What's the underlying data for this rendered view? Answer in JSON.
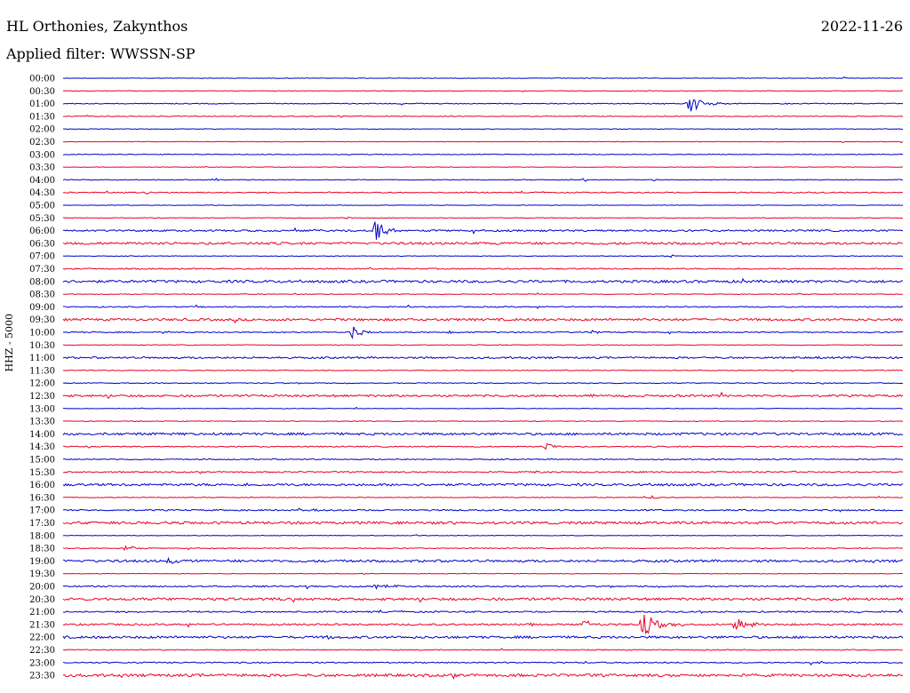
{
  "header": {
    "station": "HL Orthonies, Zakynthos",
    "filter": "Applied filter: WWSSN-SP",
    "date": "2022-11-26",
    "channel": "HHZ - 5000"
  },
  "colors": {
    "odd_trace": "#0000cc",
    "even_trace": "#e8002a"
  },
  "chart_data": {
    "type": "line",
    "title": "HL Orthonies, Zakynthos",
    "subtitle": "Applied filter: WWSSN-SP",
    "date": "2022-11-26",
    "ylabel": "HHZ - 5000",
    "grid": false,
    "legend": "none",
    "rows": [
      {
        "label": "00:00",
        "color": "blue",
        "noise": 0.3,
        "events": [
          {
            "t": 0.93,
            "amp": 2,
            "dur": 0.01
          }
        ]
      },
      {
        "label": "00:30",
        "color": "red",
        "noise": 0.3,
        "events": []
      },
      {
        "label": "01:00",
        "color": "blue",
        "noise": 0.5,
        "events": [
          {
            "t": 0.745,
            "amp": 10,
            "dur": 0.05
          },
          {
            "t": 0.86,
            "amp": 1.5,
            "dur": 0.02
          }
        ]
      },
      {
        "label": "01:30",
        "color": "red",
        "noise": 0.4,
        "events": [
          {
            "t": 0.33,
            "amp": 3,
            "dur": 0.02
          }
        ]
      },
      {
        "label": "02:00",
        "color": "blue",
        "noise": 0.3,
        "events": []
      },
      {
        "label": "02:30",
        "color": "red",
        "noise": 0.3,
        "events": []
      },
      {
        "label": "03:00",
        "color": "blue",
        "noise": 0.4,
        "events": []
      },
      {
        "label": "03:30",
        "color": "red",
        "noise": 0.3,
        "events": []
      },
      {
        "label": "04:00",
        "color": "blue",
        "noise": 0.4,
        "events": [
          {
            "t": 0.18,
            "amp": 2,
            "dur": 0.015
          },
          {
            "t": 0.62,
            "amp": 2,
            "dur": 0.015
          },
          {
            "t": 0.705,
            "amp": 2,
            "dur": 0.015
          }
        ]
      },
      {
        "label": "04:30",
        "color": "red",
        "noise": 0.6,
        "events": [
          {
            "t": 0.1,
            "amp": 1.5,
            "dur": 0.02
          }
        ]
      },
      {
        "label": "05:00",
        "color": "blue",
        "noise": 0.3,
        "events": []
      },
      {
        "label": "05:30",
        "color": "red",
        "noise": 0.4,
        "events": [
          {
            "t": 0.34,
            "amp": 2,
            "dur": 0.01
          },
          {
            "t": 0.61,
            "amp": 1.5,
            "dur": 0.02
          }
        ]
      },
      {
        "label": "06:00",
        "color": "blue",
        "noise": 1.0,
        "events": [
          {
            "t": 0.37,
            "amp": 11,
            "dur": 0.06
          }
        ]
      },
      {
        "label": "06:30",
        "color": "red",
        "noise": 1.3,
        "events": []
      },
      {
        "label": "07:00",
        "color": "blue",
        "noise": 0.3,
        "events": [
          {
            "t": 0.725,
            "amp": 2,
            "dur": 0.01
          }
        ]
      },
      {
        "label": "07:30",
        "color": "red",
        "noise": 0.7,
        "events": []
      },
      {
        "label": "08:00",
        "color": "blue",
        "noise": 1.4,
        "events": []
      },
      {
        "label": "08:30",
        "color": "red",
        "noise": 0.4,
        "events": []
      },
      {
        "label": "09:00",
        "color": "blue",
        "noise": 0.6,
        "events": []
      },
      {
        "label": "09:30",
        "color": "red",
        "noise": 1.3,
        "events": []
      },
      {
        "label": "10:00",
        "color": "blue",
        "noise": 0.6,
        "events": [
          {
            "t": 0.12,
            "amp": 2.5,
            "dur": 0.015
          },
          {
            "t": 0.345,
            "amp": 7,
            "dur": 0.04
          },
          {
            "t": 0.46,
            "amp": 2.5,
            "dur": 0.015
          },
          {
            "t": 0.63,
            "amp": 2.5,
            "dur": 0.02
          }
        ]
      },
      {
        "label": "10:30",
        "color": "red",
        "noise": 0.4,
        "events": []
      },
      {
        "label": "11:00",
        "color": "blue",
        "noise": 1.0,
        "events": [
          {
            "t": 0.9,
            "amp": 1.5,
            "dur": 0.01
          }
        ]
      },
      {
        "label": "11:30",
        "color": "red",
        "noise": 0.4,
        "events": [
          {
            "t": 0.66,
            "amp": 1.5,
            "dur": 0.01
          }
        ]
      },
      {
        "label": "12:00",
        "color": "blue",
        "noise": 0.5,
        "events": []
      },
      {
        "label": "12:30",
        "color": "red",
        "noise": 1.2,
        "events": [
          {
            "t": 0.63,
            "amp": 1.5,
            "dur": 0.01
          }
        ]
      },
      {
        "label": "13:00",
        "color": "blue",
        "noise": 0.3,
        "events": [
          {
            "t": 0.35,
            "amp": 1.5,
            "dur": 0.01
          }
        ]
      },
      {
        "label": "13:30",
        "color": "red",
        "noise": 0.4,
        "events": []
      },
      {
        "label": "14:00",
        "color": "blue",
        "noise": 1.3,
        "events": [
          {
            "t": 0.18,
            "amp": 2,
            "dur": 0.01
          },
          {
            "t": 0.995,
            "amp": 2,
            "dur": 0.01
          }
        ]
      },
      {
        "label": "14:30",
        "color": "red",
        "noise": 0.6,
        "events": [
          {
            "t": 0.03,
            "amp": 1.5,
            "dur": 0.02
          },
          {
            "t": 0.19,
            "amp": 2,
            "dur": 0.015
          },
          {
            "t": 0.575,
            "amp": 5,
            "dur": 0.03
          }
        ]
      },
      {
        "label": "15:00",
        "color": "blue",
        "noise": 0.6,
        "events": []
      },
      {
        "label": "15:30",
        "color": "red",
        "noise": 0.7,
        "events": [
          {
            "t": 0.56,
            "amp": 1.2,
            "dur": 0.04
          },
          {
            "t": 0.87,
            "amp": 1.2,
            "dur": 0.03
          }
        ]
      },
      {
        "label": "16:00",
        "color": "blue",
        "noise": 1.3,
        "events": []
      },
      {
        "label": "16:30",
        "color": "red",
        "noise": 0.4,
        "events": [
          {
            "t": 0.7,
            "amp": 3,
            "dur": 0.015
          }
        ]
      },
      {
        "label": "17:00",
        "color": "blue",
        "noise": 0.8,
        "events": [
          {
            "t": 0.3,
            "amp": 1.5,
            "dur": 0.01
          }
        ]
      },
      {
        "label": "17:30",
        "color": "red",
        "noise": 1.4,
        "events": []
      },
      {
        "label": "18:00",
        "color": "blue",
        "noise": 0.3,
        "events": [
          {
            "t": 0.42,
            "amp": 1.5,
            "dur": 0.01
          }
        ]
      },
      {
        "label": "18:30",
        "color": "red",
        "noise": 0.5,
        "events": [
          {
            "t": 0.075,
            "amp": 4,
            "dur": 0.03
          }
        ]
      },
      {
        "label": "19:00",
        "color": "blue",
        "noise": 1.3,
        "events": [
          {
            "t": 0.125,
            "amp": 4,
            "dur": 0.035
          }
        ]
      },
      {
        "label": "19:30",
        "color": "red",
        "noise": 0.3,
        "events": []
      },
      {
        "label": "20:00",
        "color": "blue",
        "noise": 0.8,
        "events": [
          {
            "t": 0.37,
            "amp": 2,
            "dur": 0.1
          }
        ]
      },
      {
        "label": "20:30",
        "color": "red",
        "noise": 1.4,
        "events": []
      },
      {
        "label": "21:00",
        "color": "blue",
        "noise": 0.8,
        "events": [
          {
            "t": 0.76,
            "amp": 1.5,
            "dur": 0.02
          }
        ]
      },
      {
        "label": "21:30",
        "color": "red",
        "noise": 1.0,
        "events": [
          {
            "t": 0.555,
            "amp": 2,
            "dur": 0.04
          },
          {
            "t": 0.62,
            "amp": 5,
            "dur": 0.04
          },
          {
            "t": 0.69,
            "amp": 13,
            "dur": 0.06
          },
          {
            "t": 0.8,
            "amp": 10,
            "dur": 0.05
          }
        ]
      },
      {
        "label": "22:00",
        "color": "blue",
        "noise": 1.3,
        "events": [
          {
            "t": 0.315,
            "amp": 3,
            "dur": 0.015
          }
        ]
      },
      {
        "label": "22:30",
        "color": "red",
        "noise": 0.5,
        "events": []
      },
      {
        "label": "23:00",
        "color": "blue",
        "noise": 0.7,
        "events": [
          {
            "t": 0.9,
            "amp": 1.5,
            "dur": 0.02
          }
        ]
      },
      {
        "label": "23:30",
        "color": "red",
        "noise": 1.5,
        "events": []
      }
    ]
  }
}
